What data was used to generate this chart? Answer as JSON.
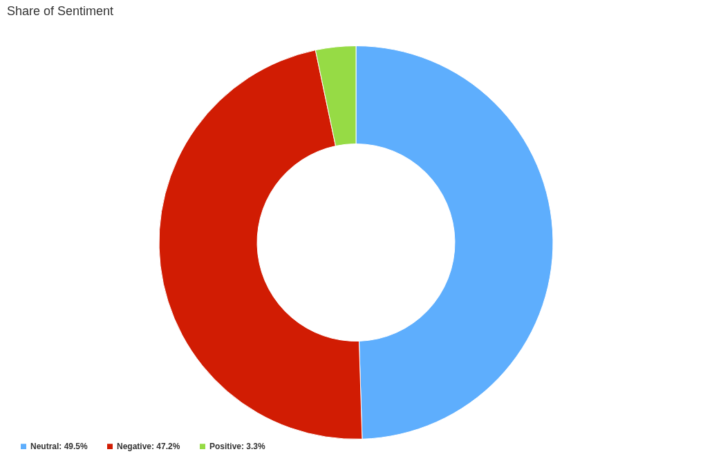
{
  "chart_data": {
    "type": "donut",
    "title": "Share of Sentiment",
    "categories": [
      "Neutral",
      "Negative",
      "Positive"
    ],
    "values": [
      49.5,
      47.2,
      3.3
    ],
    "value_labels": [
      "49.5%",
      "47.2%",
      "3.3%"
    ],
    "colors": [
      "#5eaefd",
      "#d11c03",
      "#96db45"
    ],
    "legend": "bottom left"
  }
}
